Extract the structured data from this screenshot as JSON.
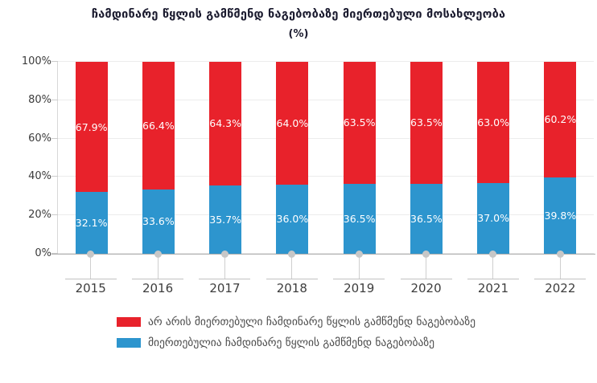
{
  "title": "ჩამდინარე წყლის გამწმენდ ნაგებობაზე მიერთებული მოსახლეობა",
  "subtitle": "(%)",
  "chart_data": {
    "type": "bar",
    "stacked": true,
    "orientation": "vertical",
    "categories": [
      "2015",
      "2016",
      "2017",
      "2018",
      "2019",
      "2020",
      "2021",
      "2022"
    ],
    "series": [
      {
        "name": "არ არის მიერთებული ჩამდინარე წყლის გამწმენდ ნაგებობაზე",
        "color": "#e8222b",
        "values": [
          67.9,
          66.4,
          64.3,
          64.0,
          63.5,
          63.5,
          63.0,
          60.2
        ]
      },
      {
        "name": "მიერთებულია ჩამდინარე წყლის გამწმენდ ნაგებობაზე",
        "color": "#2d95ce",
        "values": [
          32.1,
          33.6,
          35.7,
          36.0,
          36.5,
          36.5,
          37.0,
          39.8
        ]
      }
    ],
    "value_label_suffix": "%",
    "value_label_decimals": 1,
    "value_label_color": "#ffffff",
    "yticks": [
      0,
      20,
      40,
      60,
      80,
      100
    ],
    "ytick_suffix": "%",
    "ylim": [
      0,
      100
    ],
    "grid": true,
    "legend_position": "bottom-left"
  }
}
